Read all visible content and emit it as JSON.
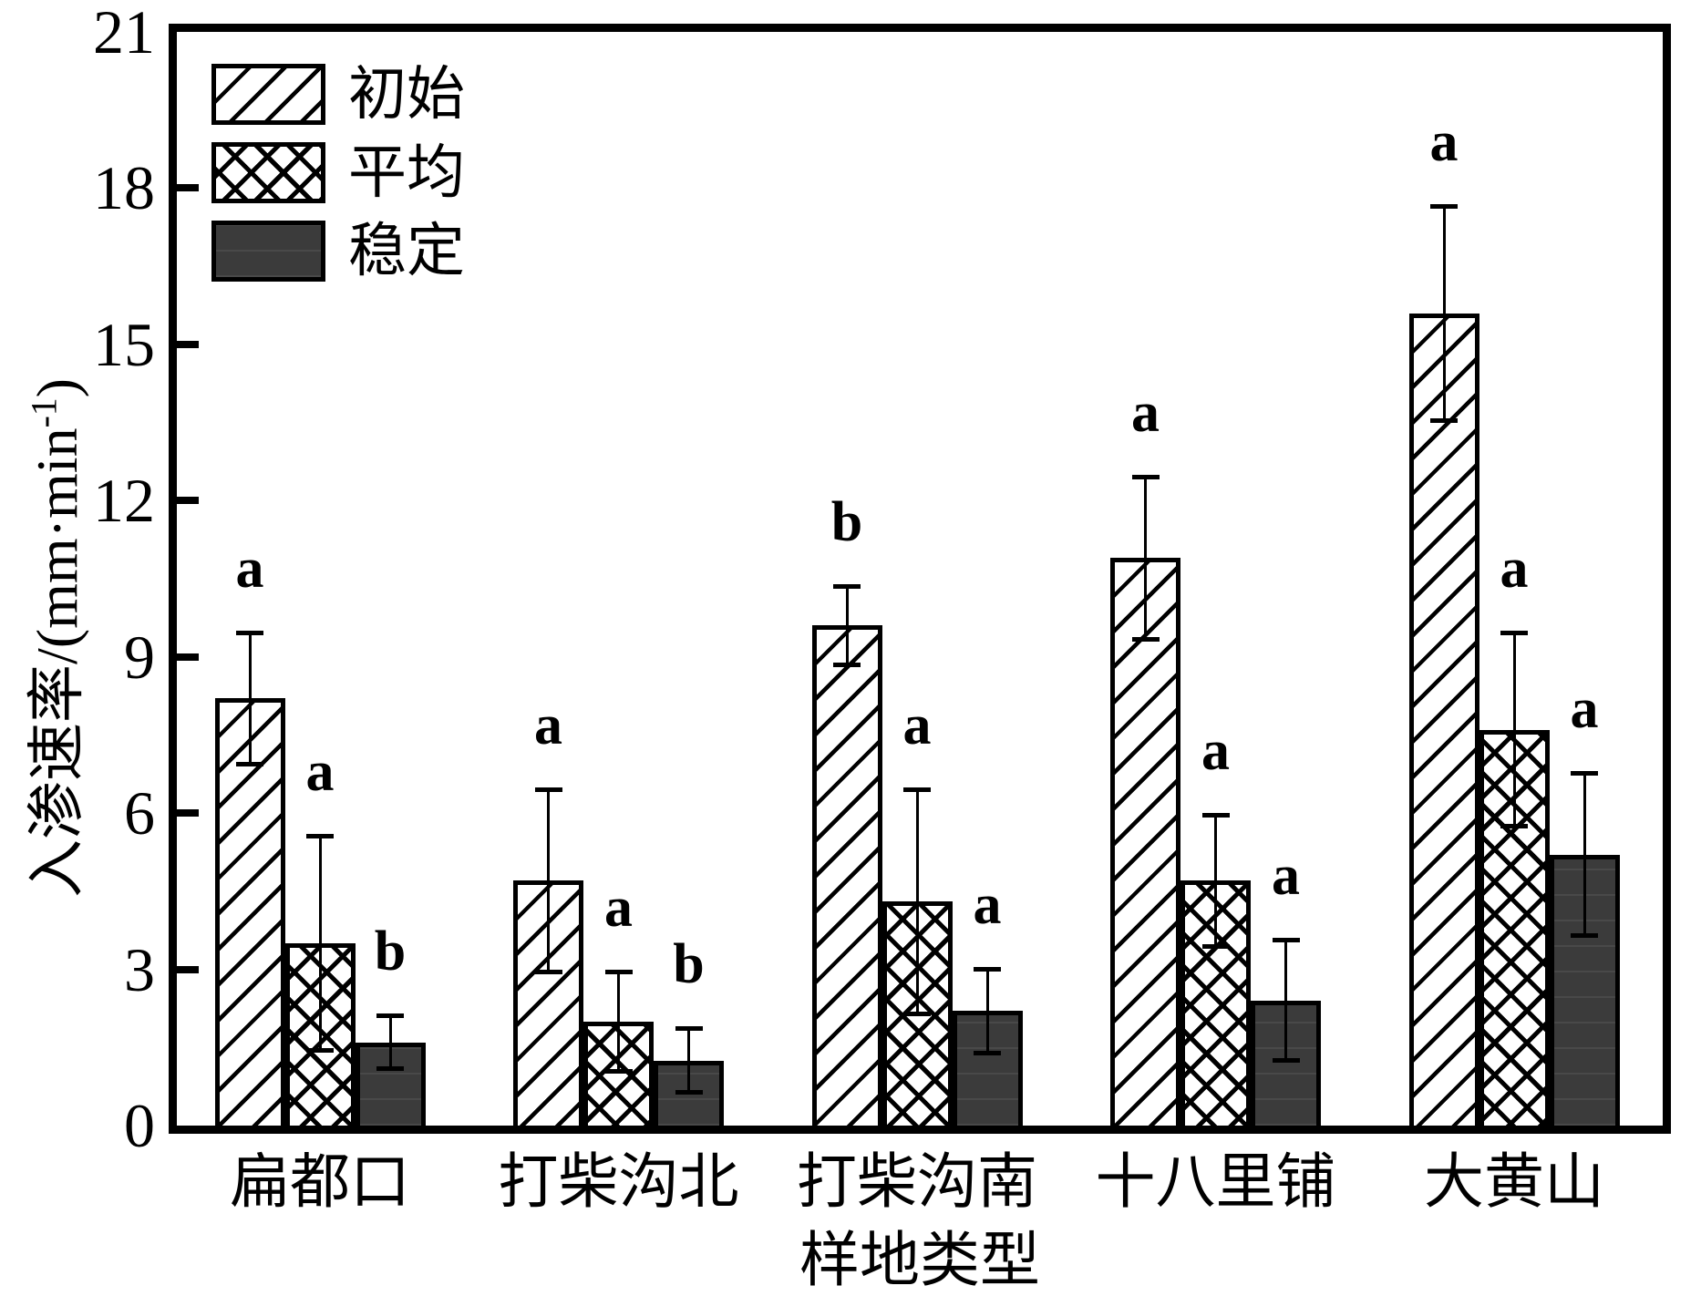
{
  "chart_data": {
    "type": "bar",
    "title": "",
    "xlabel": "样地类型",
    "ylabel": "入渗速率/(mm·min⁻¹)",
    "ylabel_parts": {
      "base": "入渗速率/(mm·min",
      "superscript": "-1",
      "close": ")"
    },
    "ylim": [
      0,
      21
    ],
    "yticks": [
      0,
      3,
      6,
      9,
      12,
      15,
      18,
      21
    ],
    "grid": false,
    "legend_position": "top-left-inside",
    "error_bars": true,
    "categories": [
      "扁都口",
      "打柴沟北",
      "打柴沟南",
      "十八里铺",
      "大黄山"
    ],
    "series": [
      {
        "name": "初始",
        "key": "initial",
        "pattern": "diagonal-hatch",
        "values": [
          8.2,
          4.7,
          9.6,
          10.9,
          15.6
        ],
        "errors": [
          1.3,
          1.8,
          0.8,
          1.6,
          2.1
        ],
        "sig_labels": [
          "a",
          "a",
          "b",
          "a",
          "a"
        ]
      },
      {
        "name": "平均",
        "key": "average",
        "pattern": "cross-hatch",
        "values": [
          3.5,
          2.0,
          4.3,
          4.7,
          7.6
        ],
        "errors": [
          2.1,
          1.0,
          2.2,
          1.3,
          1.9
        ],
        "sig_labels": [
          "a",
          "a",
          "a",
          "a",
          "a"
        ]
      },
      {
        "name": "稳定",
        "key": "stable",
        "pattern": "solid-dark",
        "values": [
          1.6,
          1.25,
          2.2,
          2.4,
          5.2
        ],
        "errors": [
          0.55,
          0.65,
          0.85,
          1.2,
          1.6
        ],
        "sig_labels": [
          "b",
          "b",
          "a",
          "a",
          "a"
        ]
      }
    ],
    "colors": {
      "background": "#ffffff",
      "bar_outline": "#000000",
      "stable_fill": "#3b3b3b",
      "axis": "#000000",
      "text": "#000000"
    }
  }
}
